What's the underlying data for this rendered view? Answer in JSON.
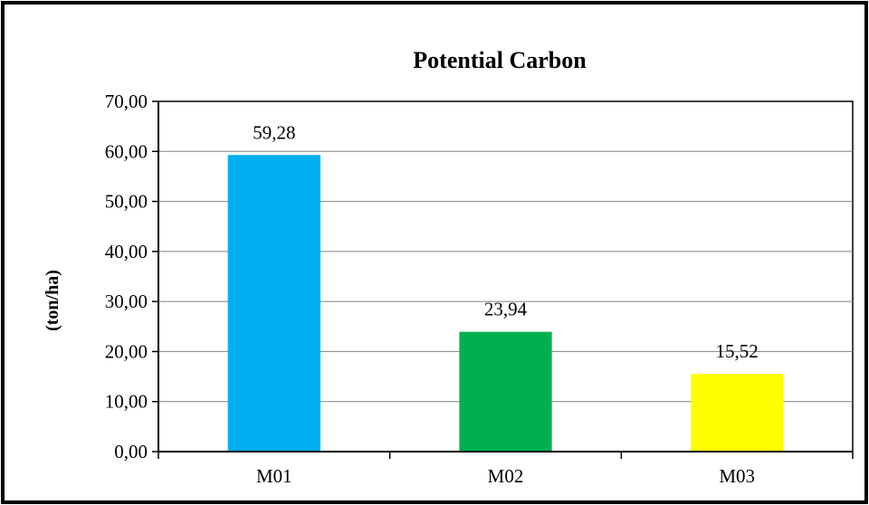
{
  "chart_data": {
    "type": "bar",
    "title": "Potential Carbon",
    "xlabel": "",
    "ylabel": "(ton/ha)",
    "categories": [
      "M01",
      "M02",
      "M03"
    ],
    "values": [
      59.28,
      23.94,
      15.52
    ],
    "value_labels": [
      "59,28",
      "23,94",
      "15,52"
    ],
    "bar_colors": [
      "#00B0F0",
      "#00B050",
      "#FFFF00"
    ],
    "ylim": [
      0,
      70
    ],
    "yticks": [
      0,
      10,
      20,
      30,
      40,
      50,
      60,
      70
    ],
    "ytick_labels": [
      "0,00",
      "10,00",
      "20,00",
      "30,00",
      "40,00",
      "50,00",
      "60,00",
      "70,00"
    ],
    "grid": true,
    "legend": "none"
  }
}
